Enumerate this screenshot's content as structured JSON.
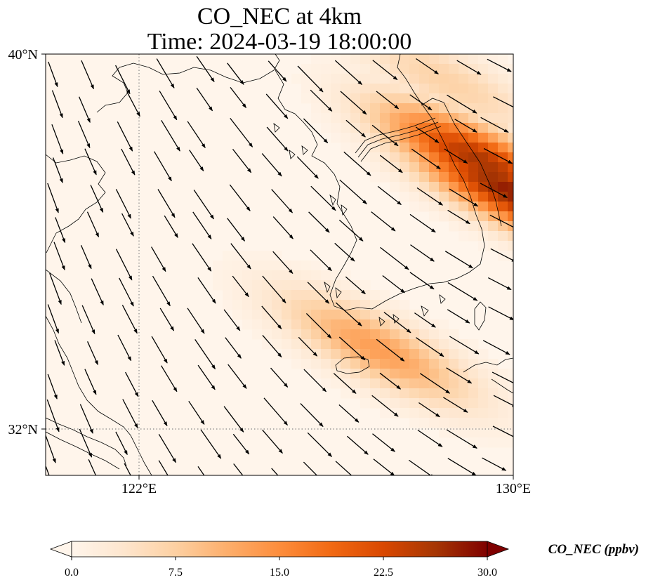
{
  "title_line1": "CO_NEC at 4km",
  "title_line2": "Time: 2024-03-19 18:00:00",
  "lat_ticks": [
    {
      "value": 40,
      "label": "40°N"
    },
    {
      "value": 32,
      "label": "32°N"
    }
  ],
  "lon_ticks": [
    {
      "value": 122,
      "label": "122°E"
    },
    {
      "value": 130,
      "label": "130°E"
    }
  ],
  "extent": {
    "lon_min": 120,
    "lon_max": 130,
    "lat_min": 31,
    "lat_max": 40
  },
  "colorbar": {
    "label": "CO_NEC (ppbv)",
    "ticks": [
      "0.0",
      "7.5",
      "15.0",
      "22.5",
      "30.0"
    ],
    "min": 0,
    "max": 30,
    "colormap": [
      "#fff5eb",
      "#fee6ce",
      "#fdd0a2",
      "#fdae6b",
      "#fd8d3c",
      "#f16913",
      "#d94801",
      "#a63603",
      "#7f0000"
    ]
  },
  "field_maxima": [
    {
      "lon": 127.0,
      "lat": 33.8,
      "value": 13
    },
    {
      "lon": 129.2,
      "lat": 37.8,
      "value": 26
    },
    {
      "lon": 129.8,
      "lat": 37.2,
      "value": 28
    },
    {
      "lon": 128.5,
      "lat": 39.5,
      "value": 7
    }
  ],
  "wind_direction": "northwest-to-southeast"
}
